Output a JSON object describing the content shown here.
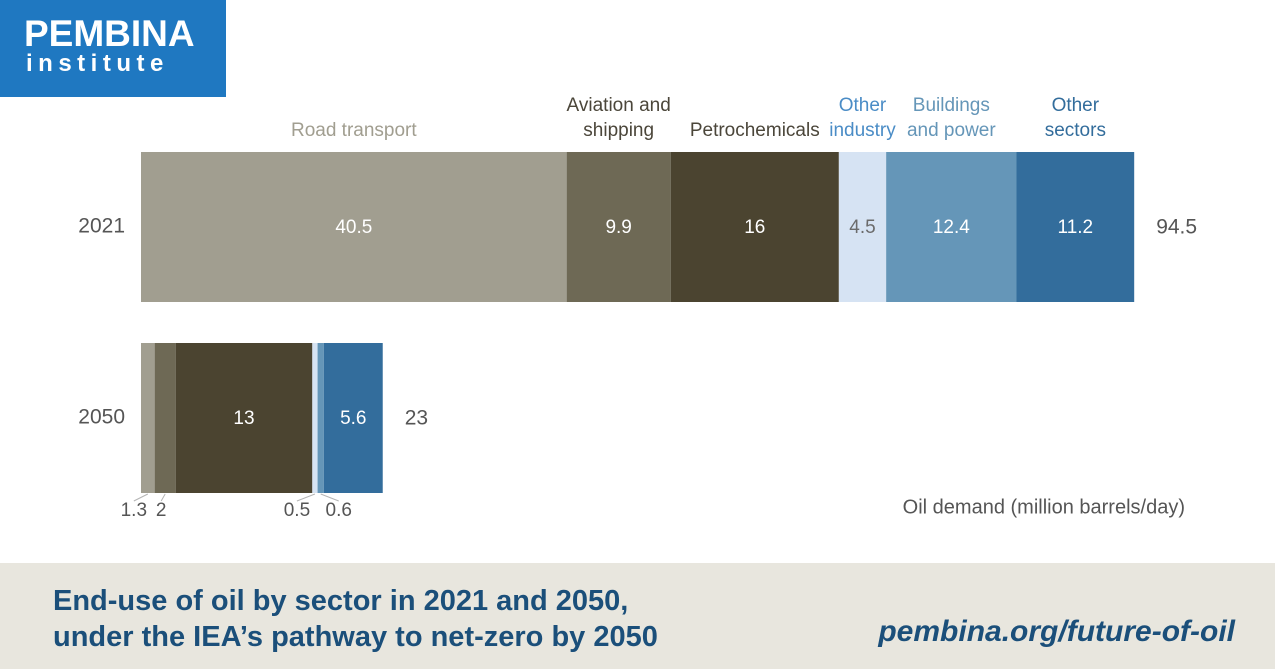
{
  "logo": {
    "line1": "PEMBINA",
    "line2": "institute"
  },
  "chart_data": {
    "type": "bar",
    "orientation": "horizontal-stacked",
    "unit_label": "Oil demand (million barrels/day)",
    "series": [
      {
        "name": "Road transport",
        "label_lines": [
          "Road transport"
        ],
        "color": "#a19e90",
        "label_color": "#a19e90",
        "value_color": "#ffffff"
      },
      {
        "name": "Aviation and shipping",
        "label_lines": [
          "Aviation and",
          "shipping"
        ],
        "color": "#6e6955",
        "label_color": "#4b463a",
        "value_color": "#ffffff"
      },
      {
        "name": "Petrochemicals",
        "label_lines": [
          "Petrochemicals"
        ],
        "color": "#4b4430",
        "label_color": "#4b463a",
        "value_color": "#ffffff"
      },
      {
        "name": "Other industry",
        "label_lines": [
          "Other",
          "industry"
        ],
        "color": "#d6e3f3",
        "label_color": "#4a8cc6",
        "value_color": "#6b6b6b"
      },
      {
        "name": "Buildings and power",
        "label_lines": [
          "Buildings",
          "and power"
        ],
        "color": "#6596b8",
        "label_color": "#6596b8",
        "value_color": "#ffffff"
      },
      {
        "name": "Other sectors",
        "label_lines": [
          "Other",
          "sectors"
        ],
        "color": "#336d9c",
        "label_color": "#336d9c",
        "value_color": "#ffffff"
      }
    ],
    "rows": [
      {
        "category": "2021",
        "values": [
          40.5,
          9.9,
          16,
          4.5,
          12.4,
          11.2
        ],
        "value_labels": [
          "40.5",
          "9.9",
          "16",
          "4.5",
          "12.4",
          "11.2"
        ],
        "total_label": "94.5",
        "outside_labels": []
      },
      {
        "category": "2050",
        "values": [
          1.3,
          2,
          13,
          0.5,
          0.6,
          5.6
        ],
        "value_labels": [
          "",
          "",
          "13",
          "",
          "",
          "5.6"
        ],
        "total_label": "23",
        "outside_labels": [
          {
            "series_index": 0,
            "text": "1.3"
          },
          {
            "series_index": 1,
            "text": "2"
          },
          {
            "series_index": 3,
            "text": "0.5"
          },
          {
            "series_index": 4,
            "text": "0.6"
          }
        ]
      }
    ]
  },
  "footer": {
    "caption_line1": "End-use of oil by sector in 2021 and 2050,",
    "caption_line2": "under the IEA’s pathway to net-zero by 2050",
    "url": "pembina.org/future-of-oil"
  }
}
